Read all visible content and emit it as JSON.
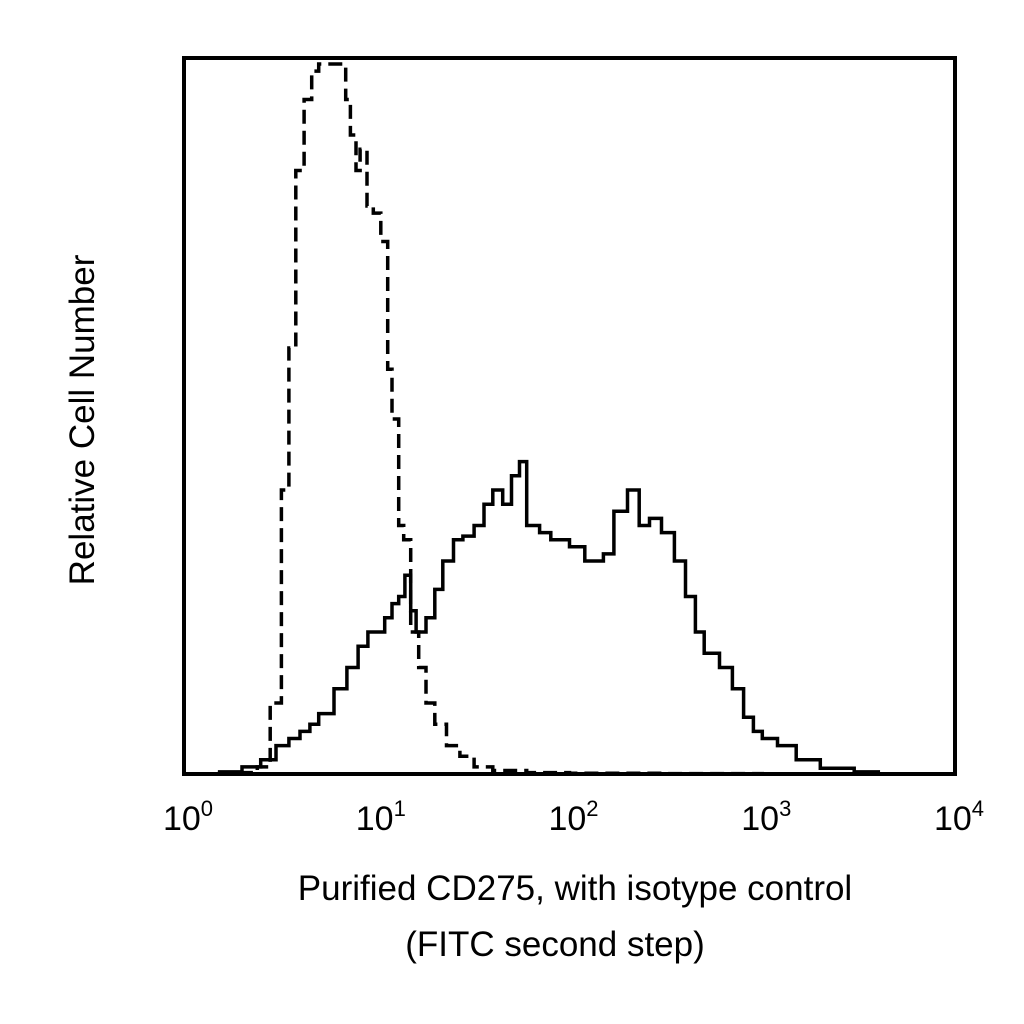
{
  "chart_data": {
    "type": "line",
    "title": "",
    "xlabel": [
      "Purified CD275, with isotype control",
      "(FITC second step)"
    ],
    "ylabel": "Relative Cell Number",
    "xscale": "log",
    "xlim": [
      1,
      10000
    ],
    "ylim": [
      0,
      100
    ],
    "grid": false,
    "legend": "none",
    "x_ticks": [
      {
        "base": "10",
        "exp": "0",
        "value": 1
      },
      {
        "base": "10",
        "exp": "1",
        "value": 10
      },
      {
        "base": "10",
        "exp": "2",
        "value": 100
      },
      {
        "base": "10",
        "exp": "3",
        "value": 1000
      },
      {
        "base": "10",
        "exp": "4",
        "value": 10000
      }
    ],
    "series": [
      {
        "style": "dashed",
        "color": "#000000",
        "x": [
          1.5,
          2.4,
          2.8,
          3.2,
          3.5,
          3.8,
          4.2,
          4.6,
          5.0,
          5.3,
          6.0,
          6.9,
          7.3,
          7.8,
          8.2,
          8.9,
          9.6,
          10.5,
          11.4,
          12.0,
          13.0,
          13.8,
          15.0,
          16.5,
          18.0,
          20.0,
          23.0,
          27.0,
          32.0,
          40.0,
          60.0,
          100.0,
          300.0,
          1000.0,
          3000.0
        ],
        "y": [
          0.2,
          1.0,
          10.0,
          40.0,
          60.0,
          85.0,
          95.0,
          99.0,
          100.0,
          100.0,
          100.0,
          95.0,
          90.0,
          85.0,
          88.0,
          80.0,
          79.0,
          75.0,
          57.0,
          50.0,
          35.0,
          33.0,
          20.0,
          15.0,
          10.0,
          7.0,
          4.0,
          2.5,
          1.0,
          0.5,
          0.2,
          0.1,
          0.05,
          0.0,
          0.0
        ]
      },
      {
        "style": "solid",
        "color": "#000000",
        "x": [
          1.5,
          2.0,
          2.5,
          3.0,
          3.5,
          4.0,
          4.5,
          5.0,
          6.0,
          7.0,
          8.0,
          9.0,
          10.0,
          11.0,
          12.0,
          13.0,
          14.0,
          15.0,
          16.0,
          18.0,
          20.0,
          22.0,
          25.0,
          28.0,
          32.0,
          36.0,
          40.0,
          45.0,
          50.0,
          55.0,
          60.0,
          70.0,
          80.0,
          100.0,
          120.0,
          150.0,
          170.0,
          200.0,
          230.0,
          260.0,
          300.0,
          350.0,
          400.0,
          450.0,
          500.0,
          600.0,
          700.0,
          800.0,
          900.0,
          1000.0,
          1200.0,
          1500.0,
          2000.0,
          3000.0,
          4000.0
        ],
        "y": [
          0.3,
          1.0,
          2.0,
          4.0,
          5.0,
          6.0,
          7.0,
          8.5,
          12.0,
          15.0,
          18.0,
          20.0,
          20.0,
          22.0,
          24.0,
          25.0,
          28.0,
          23.0,
          20.0,
          22.0,
          26.0,
          30.0,
          33.0,
          33.5,
          35.0,
          38.0,
          40.0,
          38.0,
          42.0,
          44.0,
          35.0,
          34.0,
          33.0,
          32.0,
          30.0,
          31.0,
          37.0,
          40.0,
          35.0,
          36.0,
          34.0,
          30.0,
          25.0,
          20.0,
          17.0,
          15.0,
          12.0,
          8.0,
          6.0,
          5.0,
          4.0,
          2.0,
          0.8,
          0.3,
          0.2
        ]
      }
    ]
  }
}
